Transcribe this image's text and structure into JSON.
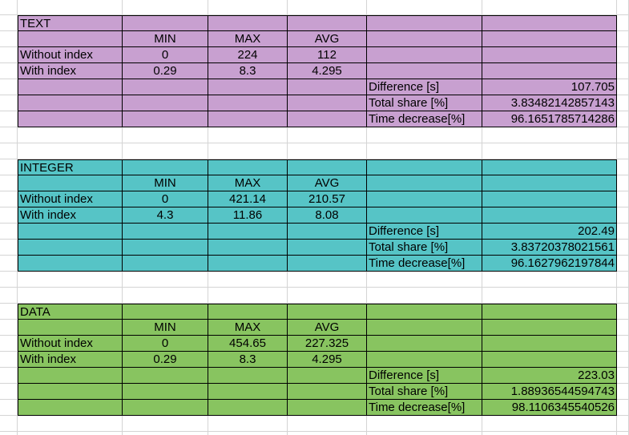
{
  "colors": {
    "text_section": "#c8a0d0",
    "integer_section": "#56c4c6",
    "data_section": "#88c460",
    "grid": "#d4d4d4"
  },
  "sections": [
    {
      "title": "TEXT",
      "headers": [
        "MIN",
        "MAX",
        "AVG"
      ],
      "rows": [
        {
          "label": "Without index",
          "min": "0",
          "max": "224",
          "avg": "112"
        },
        {
          "label": "With index",
          "min": "0.29",
          "max": "8.3",
          "avg": "4.295"
        }
      ],
      "stats": [
        {
          "label": "Difference [s]",
          "value": "107.705"
        },
        {
          "label": "Total share [%]",
          "value": "3.83482142857143"
        },
        {
          "label": "Time decrease[%]",
          "value": "96.1651785714286"
        }
      ]
    },
    {
      "title": "INTEGER",
      "headers": [
        "MIN",
        "MAX",
        "AVG"
      ],
      "rows": [
        {
          "label": "Without index",
          "min": "0",
          "max": "421.14",
          "avg": "210.57"
        },
        {
          "label": "With index",
          "min": "4.3",
          "max": "11.86",
          "avg": "8.08"
        }
      ],
      "stats": [
        {
          "label": "Difference [s]",
          "value": "202.49"
        },
        {
          "label": "Total share [%]",
          "value": "3.83720378021561"
        },
        {
          "label": "Time decrease[%]",
          "value": "96.1627962197844"
        }
      ]
    },
    {
      "title": "DATA",
      "headers": [
        "MIN",
        "MAX",
        "AVG"
      ],
      "rows": [
        {
          "label": "Without index",
          "min": "0",
          "max": "454.65",
          "avg": "227.325"
        },
        {
          "label": "With index",
          "min": "0.29",
          "max": "8.3",
          "avg": "4.295"
        }
      ],
      "stats": [
        {
          "label": "Difference [s]",
          "value": "223.03"
        },
        {
          "label": "Total share [%]",
          "value": "1.88936544594743"
        },
        {
          "label": "Time decrease[%]",
          "value": "98.1106345540526"
        }
      ]
    }
  ]
}
